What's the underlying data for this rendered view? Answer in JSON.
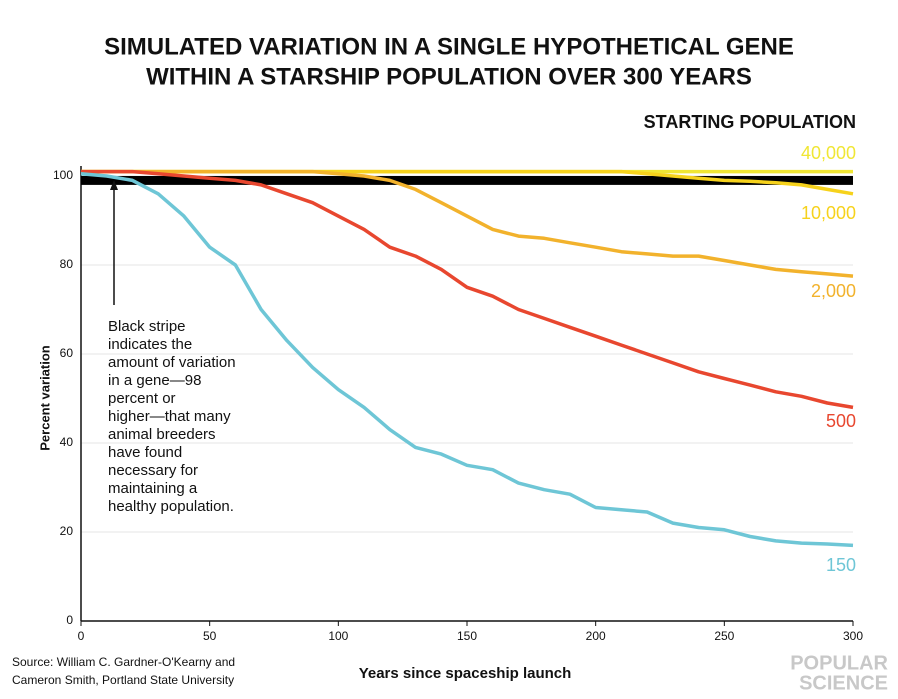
{
  "chart_data": {
    "type": "line",
    "title": [
      "SIMULATED VARIATION IN A SINGLE HYPOTHETICAL GENE",
      "WITHIN A STARSHIP POPULATION OVER 300 YEARS"
    ],
    "legend_title": "STARTING POPULATION",
    "xlabel": "Years since spaceship launch",
    "ylabel": "Percent variation",
    "x": [
      0,
      10,
      20,
      30,
      40,
      50,
      60,
      70,
      80,
      90,
      100,
      110,
      120,
      130,
      140,
      150,
      160,
      170,
      180,
      190,
      200,
      210,
      220,
      230,
      240,
      250,
      260,
      270,
      280,
      290,
      300
    ],
    "series": [
      {
        "name": "40,000",
        "color": "#f0e634",
        "values": [
          101,
          101,
          101,
          101,
          101,
          101,
          101,
          101,
          101,
          101,
          101,
          101,
          101,
          101,
          101,
          101,
          101,
          101,
          101,
          101,
          101,
          101,
          101,
          101,
          101,
          101,
          101,
          101,
          101,
          101,
          101
        ]
      },
      {
        "name": "10,000",
        "color": "#f6d21c",
        "values": [
          101,
          101,
          101,
          101,
          101,
          101,
          101,
          101,
          101,
          101,
          101,
          101,
          101,
          101,
          101,
          101,
          101,
          101,
          101,
          101,
          101,
          101,
          100.5,
          100,
          99.5,
          99,
          98.8,
          98.5,
          98,
          97,
          96
        ]
      },
      {
        "name": "2,000",
        "color": "#f2b22c",
        "values": [
          101,
          101,
          101,
          101,
          101,
          101,
          101,
          101,
          101,
          101,
          100.5,
          100,
          99,
          97,
          94,
          91,
          88,
          86.5,
          86,
          85,
          84,
          83,
          82.5,
          82,
          82,
          81,
          80,
          79,
          78.5,
          78,
          77.5
        ]
      },
      {
        "name": "500",
        "color": "#e8472f",
        "values": [
          101,
          101,
          101,
          100.5,
          100,
          99.5,
          99,
          98,
          96,
          94,
          91,
          88,
          84,
          82,
          79,
          75,
          73,
          70,
          68,
          66,
          64,
          62,
          60,
          58,
          56,
          54.5,
          53,
          51.5,
          50.5,
          49,
          48
        ]
      },
      {
        "name": "150",
        "color": "#6ec6d6",
        "values": [
          100.5,
          100,
          99,
          96,
          91,
          84,
          80,
          70,
          63,
          57,
          52,
          48,
          43,
          39,
          37.5,
          35,
          34,
          31,
          29.5,
          28.5,
          25.5,
          25,
          24.5,
          22,
          21,
          20.5,
          19,
          18,
          17.5,
          17.3,
          17
        ]
      }
    ],
    "band": [
      98,
      100
    ],
    "band_color": "#000000",
    "annotation": [
      "Black stripe",
      "indicates the",
      "amount of variation",
      "in a gene—98",
      "percent or",
      "higher—that many",
      "animal breeders",
      "have found",
      "necessary for",
      "maintaining a",
      "healthy population."
    ],
    "xlim": [
      0,
      300
    ],
    "ylim": [
      0,
      100
    ],
    "xticks": [
      0,
      50,
      100,
      150,
      200,
      250,
      300
    ],
    "yticks": [
      0,
      20,
      40,
      60,
      80,
      100
    ],
    "grid": true,
    "source": [
      "Source: William C. Gardner-O'Kearny and",
      "Cameron Smith, Portland State University"
    ],
    "logo": [
      "POPULAR",
      "SCIENCE"
    ]
  }
}
